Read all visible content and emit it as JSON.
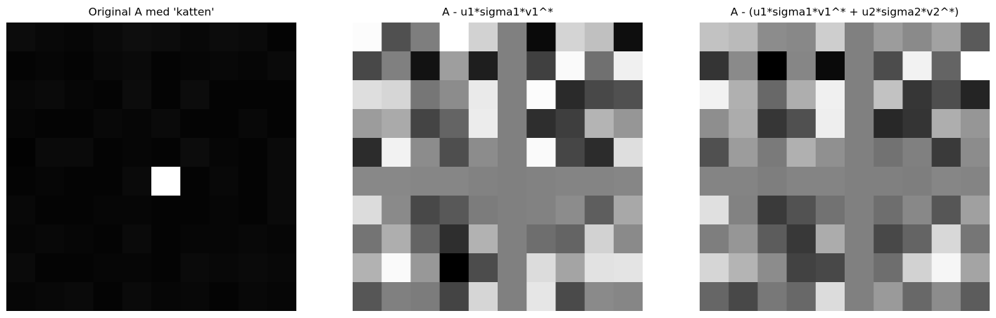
{
  "chart_data": [
    {
      "type": "heatmap",
      "title": "Original A med 'katten'",
      "colormap": "gray",
      "rows": 10,
      "cols": 10,
      "values": [
        [
          12,
          8,
          6,
          10,
          14,
          12,
          8,
          12,
          10,
          4
        ],
        [
          4,
          6,
          4,
          8,
          10,
          4,
          6,
          8,
          6,
          10
        ],
        [
          8,
          10,
          6,
          4,
          12,
          4,
          12,
          4,
          4,
          4
        ],
        [
          6,
          4,
          4,
          8,
          6,
          10,
          4,
          4,
          8,
          4
        ],
        [
          2,
          10,
          10,
          4,
          6,
          4,
          12,
          6,
          4,
          10
        ],
        [
          4,
          6,
          4,
          4,
          10,
          255,
          4,
          8,
          4,
          10
        ],
        [
          8,
          4,
          4,
          6,
          6,
          4,
          4,
          6,
          4,
          10
        ],
        [
          6,
          8,
          6,
          4,
          10,
          4,
          6,
          6,
          8,
          6
        ],
        [
          10,
          4,
          4,
          6,
          6,
          4,
          10,
          8,
          10,
          8
        ],
        [
          6,
          8,
          10,
          4,
          10,
          6,
          8,
          4,
          8,
          6
        ]
      ]
    },
    {
      "type": "heatmap",
      "title": "A - u1*sigma1*v1^*",
      "colormap": "gray",
      "rows": 10,
      "cols": 10,
      "values": [
        [
          252,
          80,
          126,
          255,
          210,
          128,
          10,
          212,
          192,
          14
        ],
        [
          72,
          128,
          18,
          158,
          30,
          128,
          64,
          250,
          112,
          240
        ],
        [
          222,
          214,
          118,
          140,
          234,
          128,
          252,
          42,
          72,
          80
        ],
        [
          156,
          170,
          68,
          100,
          236,
          128,
          46,
          62,
          180,
          150
        ],
        [
          44,
          242,
          140,
          78,
          140,
          128,
          250,
          70,
          44,
          222
        ],
        [
          136,
          136,
          134,
          134,
          130,
          128,
          130,
          132,
          132,
          134
        ],
        [
          220,
          138,
          72,
          88,
          124,
          128,
          130,
          140,
          94,
          168
        ],
        [
          116,
          174,
          100,
          46,
          178,
          128,
          110,
          100,
          210,
          138
        ],
        [
          178,
          250,
          152,
          0,
          76,
          128,
          220,
          164,
          226,
          228
        ],
        [
          86,
          128,
          124,
          68,
          214,
          128,
          230,
          74,
          138,
          134
        ]
      ]
    },
    {
      "type": "heatmap",
      "title": "A - (u1*sigma1*v1^* + u2*sigma2*v2^*)",
      "colormap": "gray",
      "rows": 10,
      "cols": 10,
      "values": [
        [
          194,
          186,
          140,
          136,
          206,
          128,
          156,
          138,
          162,
          90
        ],
        [
          52,
          138,
          0,
          134,
          10,
          128,
          76,
          242,
          100,
          255
        ],
        [
          242,
          176,
          104,
          174,
          240,
          128,
          194,
          54,
          78,
          36
        ],
        [
          142,
          172,
          54,
          80,
          238,
          128,
          40,
          52,
          174,
          150
        ],
        [
          80,
          156,
          122,
          176,
          144,
          128,
          114,
          128,
          58,
          140
        ],
        [
          132,
          132,
          126,
          132,
          132,
          128,
          128,
          126,
          134,
          132
        ],
        [
          224,
          130,
          58,
          82,
          114,
          128,
          110,
          136,
          86,
          160
        ],
        [
          126,
          150,
          92,
          56,
          172,
          128,
          72,
          100,
          216,
          118
        ],
        [
          214,
          180,
          140,
          66,
          72,
          128,
          110,
          210,
          246,
          164
        ],
        [
          102,
          72,
          120,
          104,
          220,
          128,
          154,
          104,
          140,
          92
        ]
      ]
    }
  ]
}
